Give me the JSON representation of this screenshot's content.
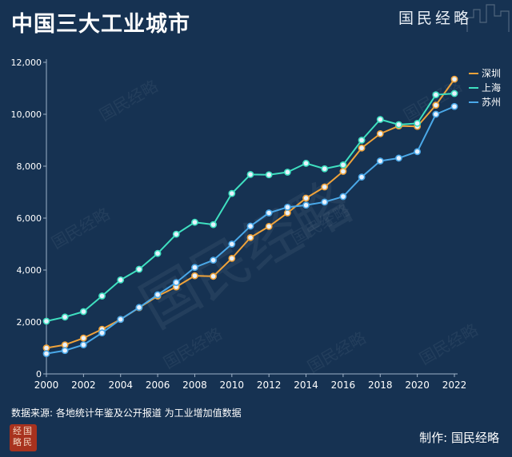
{
  "header": {
    "title": "中国三大工业城市",
    "brand": "国民经略"
  },
  "footer": {
    "source": "数据来源: 各地统计年鉴及公开报道  为工业增加值数据",
    "credit": "制作: 国民经略",
    "seal_text": "经国略民"
  },
  "watermark_text": "国民经略",
  "colors": {
    "background": "#163252",
    "shenzhen": "#f0a33a",
    "shanghai": "#3fe0c0",
    "suzhou": "#4aa8e8",
    "axis": "#9fb3c8"
  },
  "chart_data": {
    "type": "line",
    "title": "中国三大工业城市",
    "xlabel": "",
    "ylabel": "",
    "xlim": [
      2000,
      2022
    ],
    "ylim": [
      0,
      12000
    ],
    "xticks": [
      2000,
      2002,
      2004,
      2006,
      2008,
      2010,
      2012,
      2014,
      2016,
      2018,
      2020,
      2022
    ],
    "yticks": [
      0,
      2000,
      4000,
      6000,
      8000,
      10000,
      12000
    ],
    "grid": false,
    "legend": "top-right",
    "x": [
      2000,
      2001,
      2002,
      2003,
      2004,
      2005,
      2006,
      2007,
      2008,
      2009,
      2010,
      2011,
      2012,
      2013,
      2014,
      2015,
      2016,
      2017,
      2018,
      2019,
      2020,
      2021,
      2022
    ],
    "series": [
      {
        "name": "深圳",
        "color": "#f0a33a",
        "values": [
          1000,
          1120,
          1380,
          1720,
          2100,
          2550,
          3000,
          3350,
          3780,
          3760,
          4450,
          5250,
          5680,
          6200,
          6770,
          7200,
          7800,
          8700,
          9250,
          9550,
          9530,
          10350,
          11350
        ]
      },
      {
        "name": "上海",
        "color": "#3fe0c0",
        "values": [
          2030,
          2190,
          2400,
          3000,
          3620,
          4030,
          4640,
          5380,
          5840,
          5750,
          6950,
          7680,
          7670,
          7770,
          8110,
          7900,
          8050,
          9000,
          9800,
          9600,
          9650,
          10750,
          10800
        ]
      },
      {
        "name": "苏州",
        "color": "#4aa8e8",
        "values": [
          780,
          900,
          1120,
          1580,
          2100,
          2560,
          3050,
          3520,
          4100,
          4380,
          5000,
          5690,
          6200,
          6420,
          6500,
          6620,
          6830,
          7580,
          8200,
          8310,
          8560,
          10000,
          10300
        ]
      }
    ]
  }
}
